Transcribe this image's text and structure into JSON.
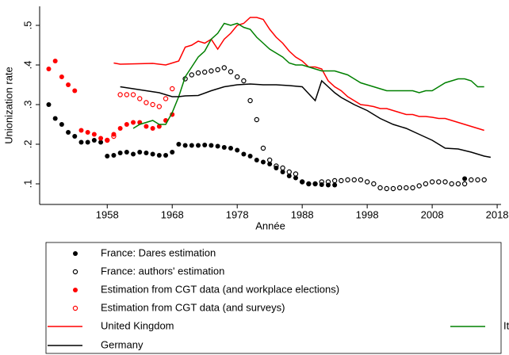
{
  "chart_data": {
    "type": "mixed",
    "y_label": "Unionization rate",
    "x_label": "Année",
    "xlim": [
      1947.6,
      2018.6
    ],
    "ylim": [
      0.048,
      0.544
    ],
    "xticks": [
      1958,
      1968,
      1978,
      1988,
      1998,
      2008,
      2018
    ],
    "yticks": [
      {
        "value": 0.1,
        "label": ".1"
      },
      {
        "value": 0.2,
        "label": ".2"
      },
      {
        "value": 0.3,
        "label": ".3"
      },
      {
        "value": 0.4,
        "label": ".4"
      },
      {
        "value": 0.5,
        "label": ".5"
      }
    ],
    "series": [
      {
        "name": "France: Dares estimation",
        "style": "dot",
        "color": "#000000",
        "x": [
          1949,
          1950,
          1951,
          1952,
          1953,
          1954,
          1955,
          1956,
          1957,
          1958,
          1959,
          1960,
          1961,
          1962,
          1963,
          1964,
          1965,
          1966,
          1967,
          1968,
          1969,
          1970,
          1971,
          1972,
          1973,
          1974,
          1975,
          1976,
          1977,
          1978,
          1979,
          1980,
          1981,
          1982,
          1983,
          1984,
          1985,
          1986,
          1987,
          1988,
          1989,
          1990,
          1991,
          1992,
          1993,
          2013
        ],
        "values": [
          0.3,
          0.265,
          0.25,
          0.23,
          0.22,
          0.205,
          0.205,
          0.21,
          0.205,
          0.17,
          0.172,
          0.178,
          0.18,
          0.175,
          0.18,
          0.178,
          0.175,
          0.172,
          0.172,
          0.18,
          0.2,
          0.197,
          0.197,
          0.197,
          0.198,
          0.197,
          0.195,
          0.192,
          0.19,
          0.185,
          0.175,
          0.17,
          0.16,
          0.155,
          0.15,
          0.14,
          0.13,
          0.12,
          0.115,
          0.105,
          0.1,
          0.1,
          0.098,
          0.097,
          0.097,
          0.113
        ]
      },
      {
        "name": "France: authors' estimation",
        "style": "circle",
        "color": "#000000",
        "x": [
          1970,
          1971,
          1972,
          1973,
          1974,
          1975,
          1976,
          1977,
          1978,
          1979,
          1980,
          1981,
          1982,
          1983,
          1984,
          1985,
          1986,
          1987,
          1988,
          1989,
          1990,
          1991,
          1992,
          1993,
          1994,
          1995,
          1996,
          1997,
          1998,
          1999,
          2000,
          2001,
          2002,
          2003,
          2004,
          2005,
          2006,
          2007,
          2008,
          2009,
          2010,
          2011,
          2012,
          2013,
          2014,
          2015,
          2016
        ],
        "values": [
          0.365,
          0.375,
          0.38,
          0.382,
          0.385,
          0.388,
          0.393,
          0.383,
          0.37,
          0.36,
          0.31,
          0.262,
          0.19,
          0.16,
          0.145,
          0.14,
          0.13,
          0.125,
          0.105,
          0.1,
          0.1,
          0.105,
          0.105,
          0.108,
          0.108,
          0.11,
          0.11,
          0.11,
          0.105,
          0.1,
          0.09,
          0.088,
          0.088,
          0.09,
          0.09,
          0.09,
          0.095,
          0.1,
          0.105,
          0.105,
          0.105,
          0.1,
          0.1,
          0.1,
          0.11,
          0.11,
          0.11
        ]
      },
      {
        "name": "Estimation from CGT data (and workplace elections)",
        "style": "dot",
        "color": "#ff0000",
        "x": [
          1949,
          1950,
          1951,
          1952,
          1953,
          1954,
          1955,
          1956,
          1957,
          1958,
          1959,
          1960,
          1961,
          1962,
          1963,
          1964,
          1965,
          1966,
          1967,
          1968
        ],
        "values": [
          0.39,
          0.41,
          0.37,
          0.35,
          0.335,
          0.235,
          0.23,
          0.225,
          0.215,
          0.21,
          0.225,
          0.24,
          0.25,
          0.255,
          0.255,
          0.245,
          0.24,
          0.245,
          0.26,
          0.275
        ]
      },
      {
        "name": "Estimation from CGT data (and surveys)",
        "style": "circle",
        "color": "#ff0000",
        "x": [
          1958,
          1959,
          1960,
          1961,
          1962,
          1963,
          1964,
          1965,
          1966,
          1967,
          1968
        ],
        "values": [
          0.21,
          0.22,
          0.325,
          0.325,
          0.325,
          0.315,
          0.305,
          0.3,
          0.295,
          0.315,
          0.34
        ]
      },
      {
        "name": "United Kingdom",
        "style": "line",
        "color": "#ff0000",
        "x": [
          1959,
          1960,
          1965,
          1967,
          1968,
          1969,
          1970,
          1971,
          1972,
          1973,
          1974,
          1975,
          1976,
          1977,
          1978,
          1979,
          1980,
          1981,
          1982,
          1983,
          1984,
          1985,
          1986,
          1987,
          1988,
          1989,
          1990,
          1991,
          1992,
          1993,
          1994,
          1995,
          1996,
          1997,
          1998,
          1999,
          2000,
          2001,
          2002,
          2003,
          2004,
          2005,
          2006,
          2007,
          2008,
          2009,
          2010,
          2011,
          2012,
          2013,
          2014,
          2015,
          2016
        ],
        "values": [
          0.405,
          0.402,
          0.404,
          0.4,
          0.405,
          0.41,
          0.445,
          0.45,
          0.46,
          0.455,
          0.465,
          0.44,
          0.465,
          0.48,
          0.5,
          0.505,
          0.52,
          0.52,
          0.515,
          0.49,
          0.47,
          0.455,
          0.435,
          0.42,
          0.41,
          0.395,
          0.395,
          0.39,
          0.36,
          0.345,
          0.335,
          0.32,
          0.31,
          0.3,
          0.298,
          0.295,
          0.29,
          0.29,
          0.285,
          0.28,
          0.275,
          0.275,
          0.27,
          0.27,
          0.268,
          0.265,
          0.265,
          0.26,
          0.255,
          0.25,
          0.245,
          0.24,
          0.235
        ]
      },
      {
        "name": "Italy",
        "style": "line",
        "color": "#008000",
        "x": [
          1962,
          1963,
          1964,
          1965,
          1966,
          1967,
          1968,
          1969,
          1970,
          1971,
          1972,
          1973,
          1974,
          1975,
          1976,
          1977,
          1978,
          1979,
          1980,
          1981,
          1982,
          1983,
          1984,
          1985,
          1986,
          1987,
          1988,
          1989,
          1990,
          1991,
          1992,
          1993,
          1994,
          1995,
          1996,
          1997,
          1998,
          1999,
          2000,
          2001,
          2002,
          2003,
          2004,
          2005,
          2006,
          2007,
          2008,
          2009,
          2010,
          2011,
          2012,
          2013,
          2014,
          2015,
          2016
        ],
        "values": [
          0.24,
          0.25,
          0.255,
          0.26,
          0.25,
          0.25,
          0.28,
          0.32,
          0.37,
          0.395,
          0.42,
          0.435,
          0.465,
          0.48,
          0.505,
          0.5,
          0.505,
          0.495,
          0.49,
          0.47,
          0.455,
          0.44,
          0.43,
          0.42,
          0.405,
          0.4,
          0.4,
          0.395,
          0.39,
          0.385,
          0.385,
          0.385,
          0.38,
          0.375,
          0.365,
          0.355,
          0.35,
          0.345,
          0.34,
          0.335,
          0.335,
          0.335,
          0.335,
          0.335,
          0.33,
          0.335,
          0.335,
          0.345,
          0.355,
          0.36,
          0.365,
          0.365,
          0.36,
          0.345,
          0.345
        ]
      },
      {
        "name": "Germany",
        "style": "line",
        "color": "#000000",
        "x": [
          1960,
          1962,
          1964,
          1966,
          1968,
          1969,
          1970,
          1972,
          1974,
          1976,
          1978,
          1980,
          1982,
          1984,
          1986,
          1988,
          1990,
          1991,
          1992,
          1993,
          1994,
          1996,
          1998,
          2000,
          2002,
          2004,
          2006,
          2008,
          2010,
          2012,
          2014,
          2016,
          2017
        ],
        "values": [
          0.345,
          0.34,
          0.335,
          0.33,
          0.32,
          0.32,
          0.322,
          0.323,
          0.335,
          0.345,
          0.35,
          0.352,
          0.35,
          0.35,
          0.348,
          0.345,
          0.31,
          0.36,
          0.345,
          0.33,
          0.318,
          0.3,
          0.285,
          0.265,
          0.25,
          0.24,
          0.225,
          0.21,
          0.19,
          0.188,
          0.18,
          0.17,
          0.167
        ]
      }
    ]
  }
}
